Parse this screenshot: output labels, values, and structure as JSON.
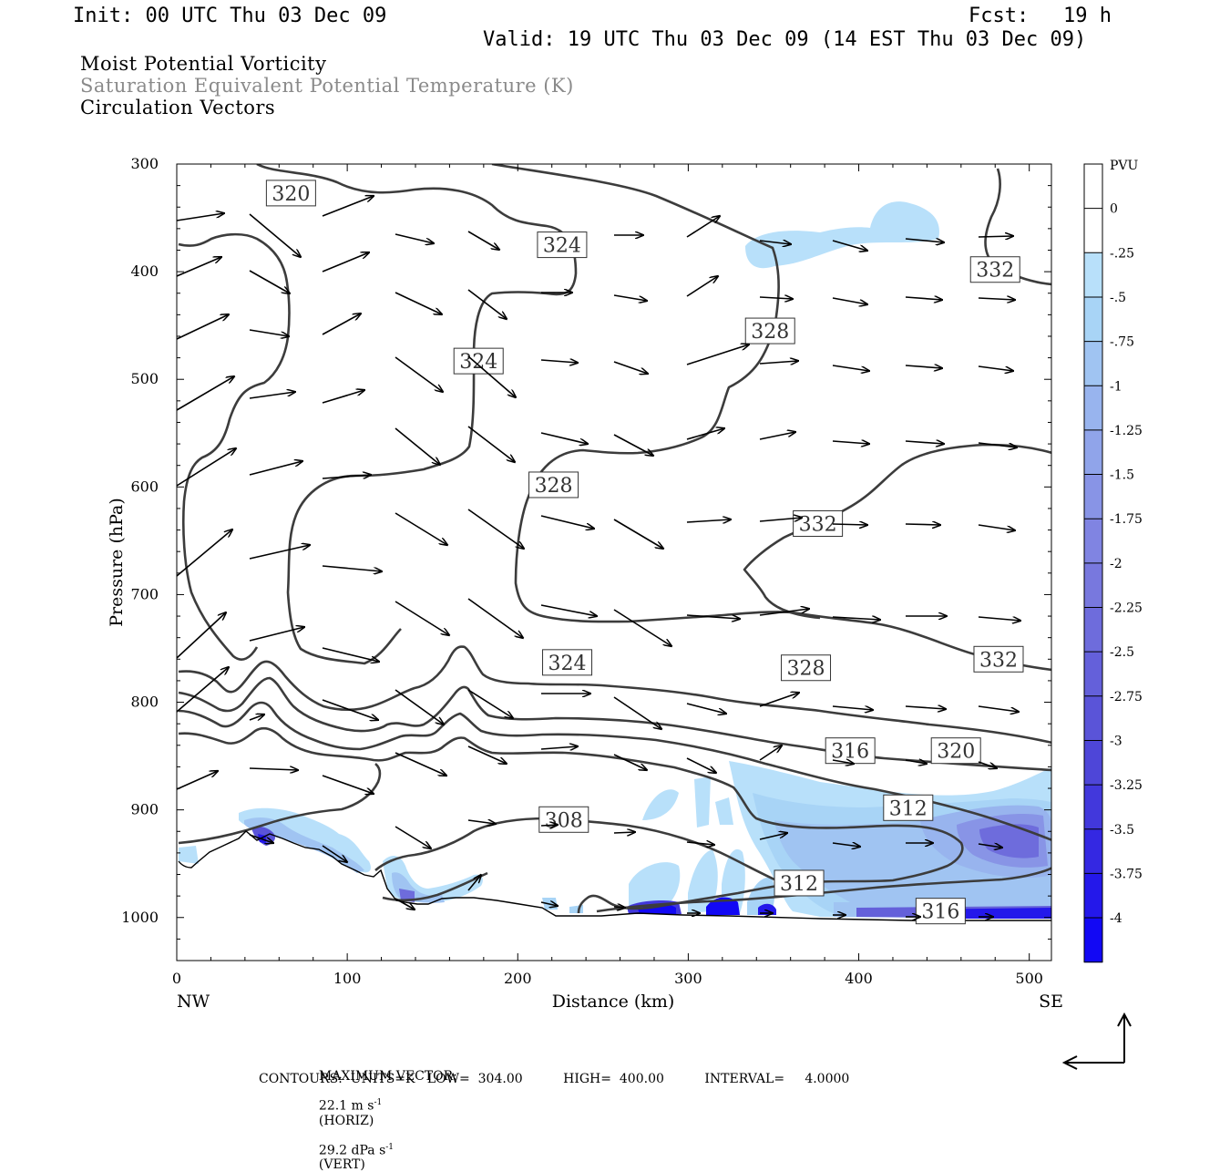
{
  "header": {
    "init": "Init: 00 UTC Thu 03 Dec 09",
    "fcst_label": "Fcst:",
    "fcst_value": "19 h",
    "valid": "Valid: 19 UTC Thu 03 Dec 09 (14 EST Thu 03 Dec 09)"
  },
  "titles": {
    "line1": "Moist Potential Vorticity",
    "line2": "Saturation Equivalent Potential Temperature (K)",
    "line3": "Circulation Vectors"
  },
  "footer": {
    "max_vector_label": "MAXIMUM VECTOR:",
    "horiz": "22.1 m s",
    "horiz_unit": "(HORIZ)",
    "vert": "29.2 dPa s",
    "vert_unit": "(VERT)",
    "exp": "-1",
    "contours": "CONTOURS:  UNITS=K   LOW=  304.00          HIGH=  400.00          INTERVAL=     4.0000"
  },
  "chart_data": {
    "type": "contour",
    "xlabel": "Distance (km)",
    "ylabel": "Pressure (hPa)",
    "xlim": [
      0,
      513
    ],
    "ylim": [
      1040,
      300
    ],
    "x_ticks": [
      0,
      100,
      200,
      300,
      400,
      500
    ],
    "y_ticks": [
      300,
      400,
      500,
      600,
      700,
      800,
      900,
      1000
    ],
    "x_end_labels": {
      "left": "NW",
      "right": "SE"
    },
    "colorbar": {
      "unit": "PVU",
      "labels": [
        "0",
        "-.25",
        "-.5",
        "-.75",
        "-1",
        "-1.25",
        "-1.5",
        "-1.75",
        "-2",
        "-2.25",
        "-2.5",
        "-2.75",
        "-3",
        "-3.25",
        "-3.5",
        "-3.75",
        "-4"
      ],
      "colors": [
        "#ffffff",
        "#ffffff",
        "#b8e0fa",
        "#a8d4f6",
        "#a0c4f2",
        "#98b4ee",
        "#90a4ea",
        "#8894e6",
        "#8084e2",
        "#7878de",
        "#6e6cdc",
        "#6460da",
        "#5a54d8",
        "#4e46d8",
        "#4238dc",
        "#3428e2",
        "#2418ea",
        "#1208f4"
      ]
    },
    "contour_labels": [
      {
        "text": "324",
        "x": 226,
        "p": 375
      },
      {
        "text": "320",
        "x": 67,
        "p": 327
      },
      {
        "text": "332",
        "x": 480,
        "p": 398
      },
      {
        "text": "328",
        "x": 348,
        "p": 455
      },
      {
        "text": "324",
        "x": 177,
        "p": 483
      },
      {
        "text": "328",
        "x": 221,
        "p": 598
      },
      {
        "text": "332",
        "x": 376,
        "p": 634
      },
      {
        "text": "324",
        "x": 229,
        "p": 763
      },
      {
        "text": "328",
        "x": 369,
        "p": 768
      },
      {
        "text": "332",
        "x": 482,
        "p": 760
      },
      {
        "text": "316",
        "x": 395,
        "p": 845
      },
      {
        "text": "320",
        "x": 457,
        "p": 845
      },
      {
        "text": "312",
        "x": 429,
        "p": 898
      },
      {
        "text": "308",
        "x": 227,
        "p": 909
      },
      {
        "text": "312",
        "x": 365,
        "p": 968
      },
      {
        "text": "316",
        "x": 448,
        "p": 994
      }
    ],
    "vector_note": "circulation vectors along cross-section"
  }
}
